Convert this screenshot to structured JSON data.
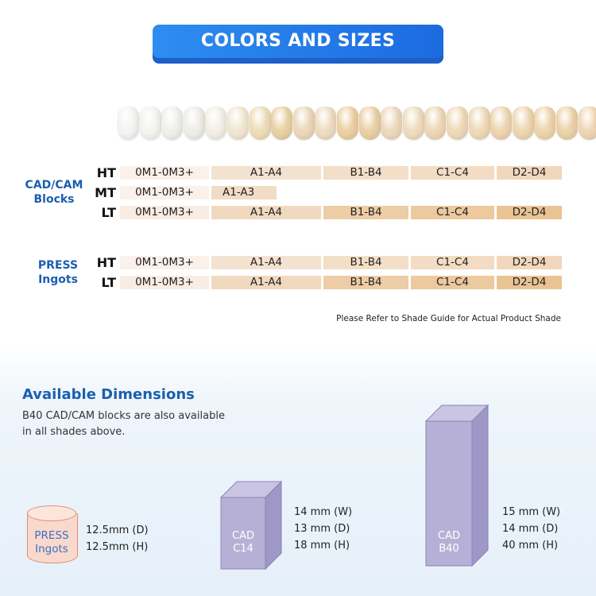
{
  "header": {
    "title": "COLORS AND SIZES"
  },
  "teeth_colors": [
    "#f3f3f1",
    "#f4f3ee",
    "#f1efea",
    "#eeede8",
    "#f3eee5",
    "#f1e6d2",
    "#efdcb8",
    "#e9d1a4",
    "#ead8b8",
    "#eedcc0",
    "#eccfa3",
    "#ead0a6",
    "#ecd9bd",
    "#efdcbf",
    "#eed7b7",
    "#efd9b9",
    "#eed9b8",
    "#edd5b0",
    "#eed6b0",
    "#eed4ad",
    "#ecd2a8",
    "#eed6b4"
  ],
  "colors": {
    "accent": "#1a5fb0",
    "banner": "#1c6be0",
    "cell_light": "#f8ece3",
    "cell_mid": "#f2dcc8",
    "cell_dark": "#e9c79c",
    "cylinder_fill": "#f9d9cc",
    "cylinder_stroke": "#e48b73",
    "box_face": "#b7b0d6",
    "box_side": "#9f97c6",
    "box_top": "#cbc5e4",
    "box_stroke": "#8b82b9"
  },
  "cadcam": {
    "group_label": [
      "CAD/CAM",
      "Blocks"
    ],
    "rows": [
      {
        "level": "HT",
        "cells": [
          "0M1-0M3+",
          "A1-A4",
          "B1-B4",
          "C1-C4",
          "D2-D4"
        ]
      },
      {
        "level": "MT",
        "cells": [
          "0M1-0M3+",
          "A1-A3"
        ]
      },
      {
        "level": "LT",
        "cells": [
          "0M1-0M3+",
          "A1-A4",
          "B1-B4",
          "C1-C4",
          "D2-D4"
        ]
      }
    ]
  },
  "press": {
    "group_label": [
      "PRESS",
      "Ingots"
    ],
    "rows": [
      {
        "level": "HT",
        "cells": [
          "0M1-0M3+",
          "A1-A4",
          "B1-B4",
          "C1-C4",
          "D2-D4"
        ]
      },
      {
        "level": "LT",
        "cells": [
          "0M1-0M3+",
          "A1-A4",
          "B1-B4",
          "C1-C4",
          "D2-D4"
        ]
      }
    ]
  },
  "note": "Please Refer to Shade Guide for Actual Product Shade",
  "dimensions": {
    "title": "Available Dimensions",
    "description": [
      "B40 CAD/CAM blocks are also available",
      "in all shades above."
    ],
    "press_ingot": {
      "label": [
        "PRESS",
        "Ingots"
      ],
      "specs": [
        "12.5mm (D)",
        "12.5mm (H)"
      ]
    },
    "cad_c14": {
      "label": [
        "CAD",
        "C14"
      ],
      "specs": [
        "14 mm (W)",
        "13 mm (D)",
        "18 mm (H)"
      ]
    },
    "cad_b40": {
      "label": [
        "CAD",
        "B40"
      ],
      "specs": [
        "15 mm (W)",
        "14 mm (D)",
        "40 mm (H)"
      ]
    }
  }
}
